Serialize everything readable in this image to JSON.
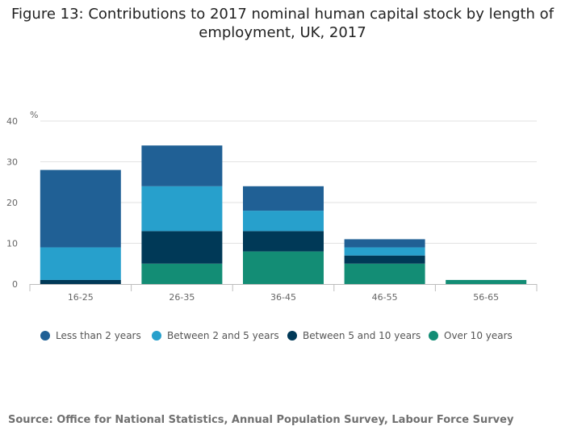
{
  "title": {
    "line1": "Figure 13: Contributions to 2017 nominal human capital stock by length of",
    "line2": "employment, UK, 2017"
  },
  "source": "Source: Office for National Statistics, Annual Population Survey, Labour Force Survey",
  "chart_data": {
    "type": "bar",
    "stacked": true,
    "title": "Figure 13: Contributions to 2017 nominal human capital stock by length of employment, UK, 2017",
    "ylabel": "%",
    "xlabel": "",
    "ylim": [
      0,
      40
    ],
    "yticks": [
      "0",
      "10",
      "20",
      "30",
      "40"
    ],
    "grid": true,
    "legend_position": "bottom",
    "categories": [
      "16-25",
      "26-35",
      "36-45",
      "46-55",
      "56-65"
    ],
    "series": [
      {
        "name": "Over 10 years",
        "color": "#138d75",
        "values": [
          0,
          5,
          8,
          5,
          1
        ]
      },
      {
        "name": "Between 5 and 10 years",
        "color": "#003957",
        "values": [
          1,
          8,
          5,
          2,
          0
        ]
      },
      {
        "name": "Between 2 and 5 years",
        "color": "#27a0cc",
        "values": [
          8,
          11,
          5,
          2,
          0
        ]
      },
      {
        "name": "Less than 2 years",
        "color": "#206095",
        "values": [
          19,
          10,
          6,
          2,
          0
        ]
      }
    ],
    "legend_order": [
      "Less than 2 years",
      "Between 2 and 5 years",
      "Between 5 and 10 years",
      "Over 10 years"
    ]
  }
}
